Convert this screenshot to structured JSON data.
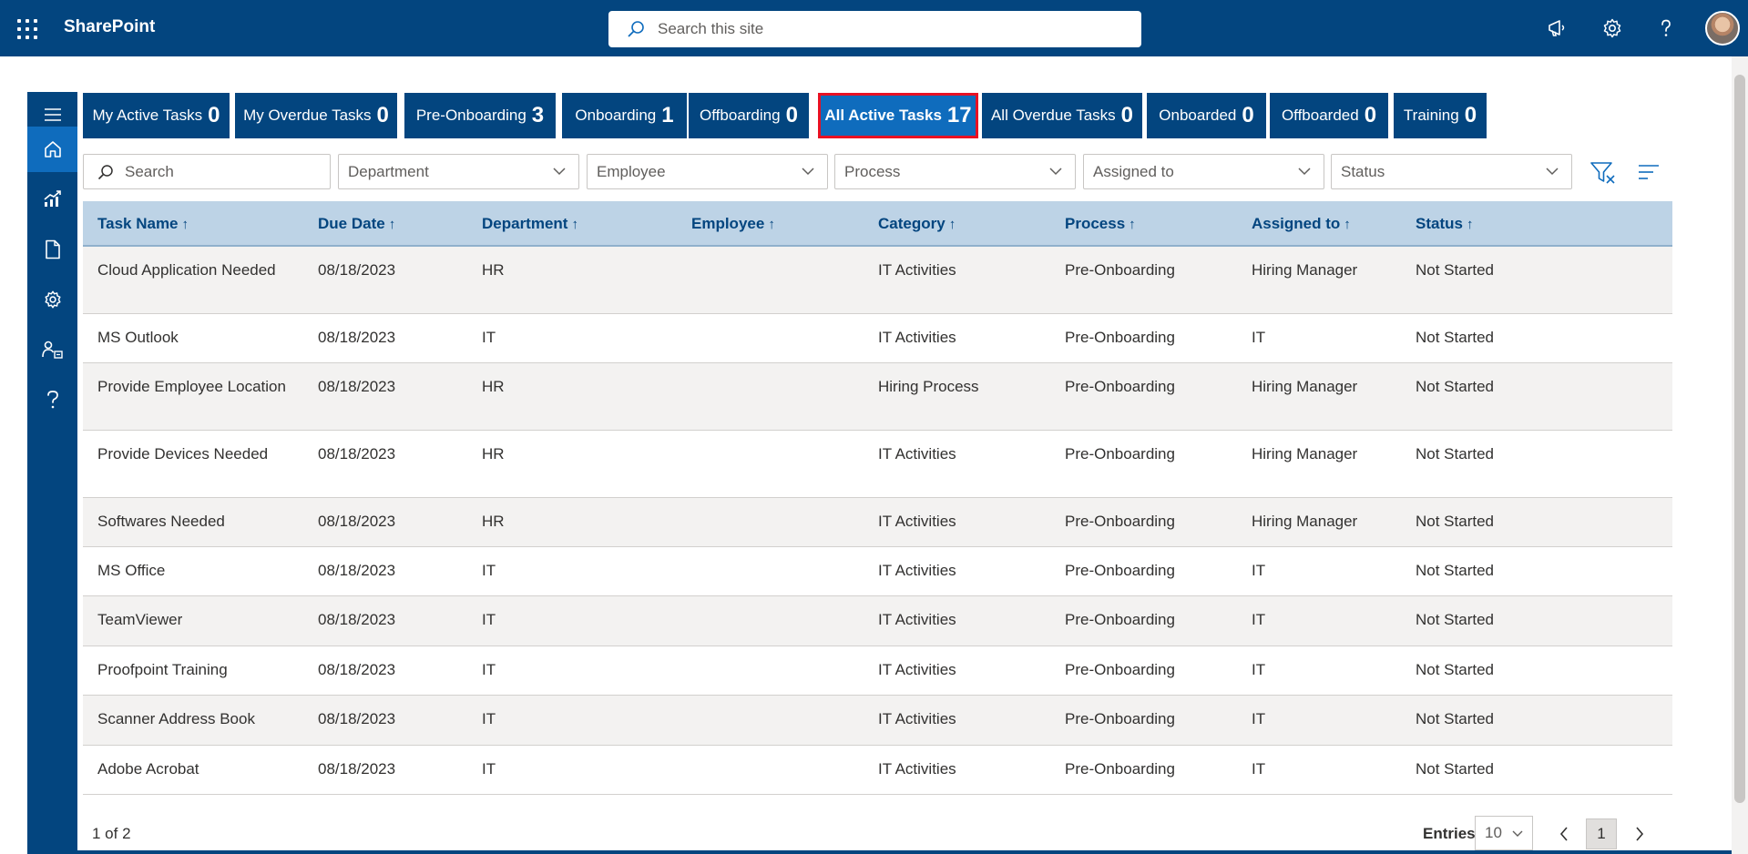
{
  "suitebar": {
    "app_name": "SharePoint",
    "search_placeholder": "Search this site"
  },
  "tabs": [
    {
      "label": "My Active Tasks",
      "count": "0"
    },
    {
      "label": "My Overdue Tasks",
      "count": "0"
    },
    {
      "label": "Pre-Onboarding",
      "count": "3"
    },
    {
      "label": "Onboarding",
      "count": "1"
    },
    {
      "label": "Offboarding",
      "count": "0"
    },
    {
      "label": "All Active Tasks",
      "count": "17"
    },
    {
      "label": "All Overdue Tasks",
      "count": "0"
    },
    {
      "label": "Onboarded",
      "count": "0"
    },
    {
      "label": "Offboarded",
      "count": "0"
    },
    {
      "label": "Training",
      "count": "0"
    }
  ],
  "filters": {
    "search_placeholder": "Search",
    "department": "Department",
    "employee": "Employee",
    "process": "Process",
    "assigned_to": "Assigned to",
    "status": "Status"
  },
  "table": {
    "columns": [
      "Task Name",
      "Due Date",
      "Department",
      "Employee",
      "Category",
      "Process",
      "Assigned to",
      "Status"
    ],
    "rows": [
      [
        "Cloud Application Needed",
        "08/18/2023",
        "HR",
        "",
        "IT Activities",
        "Pre-Onboarding",
        "Hiring Manager",
        "Not Started"
      ],
      [
        "MS Outlook",
        "08/18/2023",
        "IT",
        "",
        "IT Activities",
        "Pre-Onboarding",
        "IT",
        "Not Started"
      ],
      [
        "Provide Employee Location",
        "08/18/2023",
        "HR",
        "",
        "Hiring Process",
        "Pre-Onboarding",
        "Hiring Manager",
        "Not Started"
      ],
      [
        "Provide Devices Needed",
        "08/18/2023",
        "HR",
        "",
        "IT Activities",
        "Pre-Onboarding",
        "Hiring Manager",
        "Not Started"
      ],
      [
        "Softwares Needed",
        "08/18/2023",
        "HR",
        "",
        "IT Activities",
        "Pre-Onboarding",
        "Hiring Manager",
        "Not Started"
      ],
      [
        "MS Office",
        "08/18/2023",
        "IT",
        "",
        "IT Activities",
        "Pre-Onboarding",
        "IT",
        "Not Started"
      ],
      [
        "TeamViewer",
        "08/18/2023",
        "IT",
        "",
        "IT Activities",
        "Pre-Onboarding",
        "IT",
        "Not Started"
      ],
      [
        "Proofpoint Training",
        "08/18/2023",
        "IT",
        "",
        "IT Activities",
        "Pre-Onboarding",
        "IT",
        "Not Started"
      ],
      [
        "Scanner Address Book",
        "08/18/2023",
        "IT",
        "",
        "IT Activities",
        "Pre-Onboarding",
        "IT",
        "Not Started"
      ],
      [
        "Adobe Acrobat",
        "08/18/2023",
        "IT",
        "",
        "IT Activities",
        "Pre-Onboarding",
        "IT",
        "Not Started"
      ]
    ]
  },
  "footer": {
    "page_info": "1 of 2",
    "entries_label": "Entries",
    "entries_value": "10",
    "current_page": "1"
  }
}
